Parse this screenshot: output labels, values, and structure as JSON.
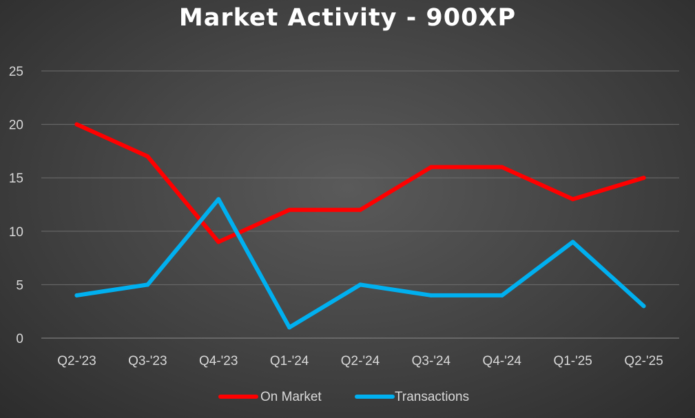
{
  "chart_data": {
    "type": "line",
    "title": "Market Activity - 900XP",
    "xlabel": "",
    "ylabel": "",
    "categories": [
      "Q2-'23",
      "Q3-'23",
      "Q4-'23",
      "Q1-'24",
      "Q2-'24",
      "Q3-'24",
      "Q4-'24",
      "Q1-'25",
      "Q2-'25"
    ],
    "series": [
      {
        "name": "On Market",
        "color": "#ff0000",
        "values": [
          20,
          17,
          9,
          12,
          12,
          16,
          16,
          13,
          15
        ]
      },
      {
        "name": "Transactions",
        "color": "#00b0f0",
        "values": [
          4,
          5,
          13,
          1,
          5,
          4,
          4,
          9,
          3
        ]
      }
    ],
    "ylim": [
      0,
      25
    ],
    "yticks": [
      0,
      5,
      10,
      15,
      20,
      25
    ],
    "grid": true,
    "legend": "bottom",
    "background": "#404040"
  }
}
